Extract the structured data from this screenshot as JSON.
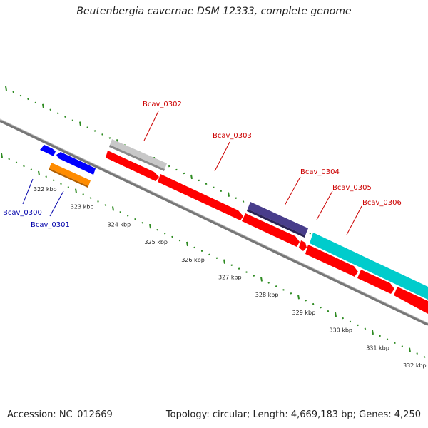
{
  "title": "Beutenbergia cavernae DSM 12333, complete genome",
  "footer": {
    "accession": "Accession: NC_012669",
    "topology": "Topology: circular; Length: 4,669,183 bp; Genes: 4,250"
  },
  "colors": {
    "backbone": "#808080",
    "tick": "#2e8b22",
    "blue_gene": "#0000ff",
    "orange_gene": "#ff8c00",
    "red_gene": "#ff0000",
    "gray_gene": "#c8c8c8",
    "purple_gene": "#483d8b",
    "cyan_gene": "#00cccc",
    "label_red": "#cc0000",
    "label_blue": "#0000aa"
  },
  "scale_labels": [
    "322 kbp",
    "323 kbp",
    "324 kbp",
    "325 kbp",
    "326 kbp",
    "327 kbp",
    "328 kbp",
    "329 kbp",
    "330 kbp",
    "331 kbp",
    "332 kbp"
  ],
  "genes": [
    {
      "id": "Bcav_0300",
      "strand": "+",
      "color": "blue"
    },
    {
      "id": "Bcav_0301",
      "strand": "+",
      "color": "orange"
    },
    {
      "id": "Bcav_0302",
      "strand": "+",
      "color": "gray"
    },
    {
      "id": "Bcav_0303",
      "strand": "-",
      "color": "red"
    },
    {
      "id": "Bcav_0304",
      "strand": "+",
      "color": "purple"
    },
    {
      "id": "Bcav_0305",
      "strand": "-",
      "color": "red"
    },
    {
      "id": "Bcav_0306",
      "strand": "+",
      "color": "cyan"
    }
  ],
  "labels": {
    "bcav_0300": "Bcav_0300",
    "bcav_0301": "Bcav_0301",
    "bcav_0302": "Bcav_0302",
    "bcav_0303": "Bcav_0303",
    "bcav_0304": "Bcav_0304",
    "bcav_0305": "Bcav_0305",
    "bcav_0306": "Bcav_0306"
  }
}
